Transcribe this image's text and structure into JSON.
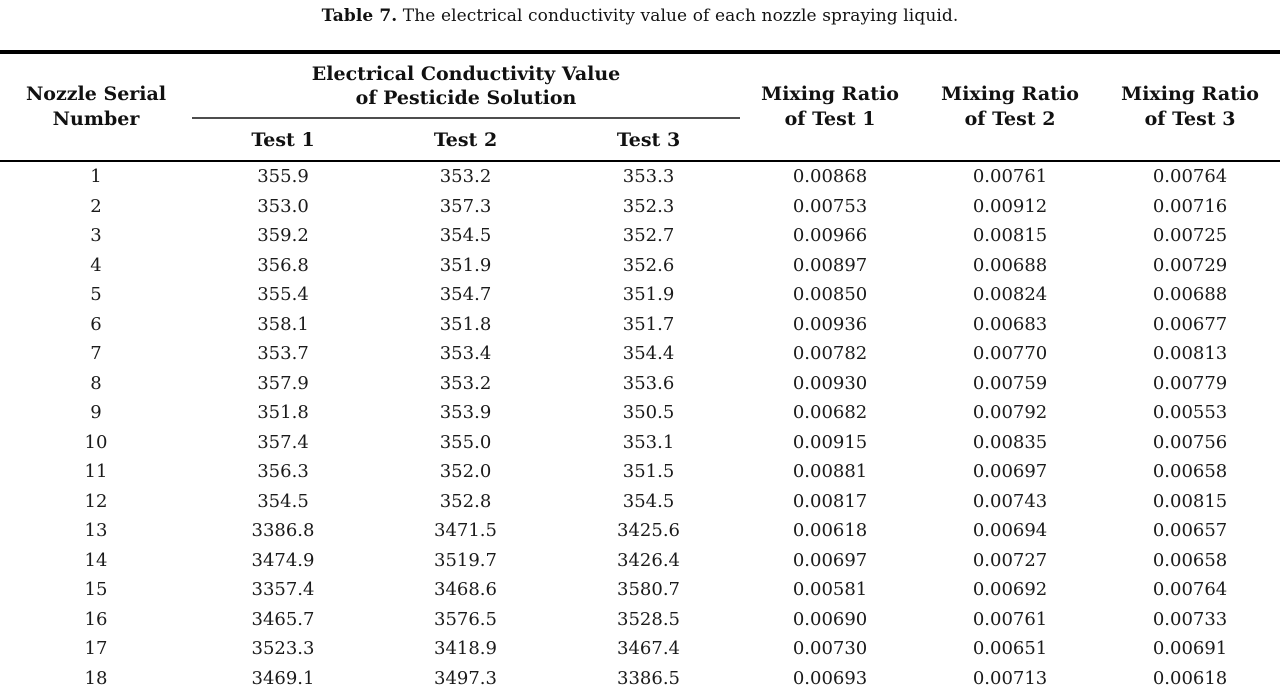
{
  "page": {
    "background": "#ffffff",
    "text_color": "#111111",
    "rule_color": "#000000",
    "group_rule_color": "#4d4d4d"
  },
  "caption": {
    "label": "Table 7.",
    "text": "The electrical conductivity value of each nozzle spraying liquid."
  },
  "table": {
    "headers": {
      "nozzle_serial": "Nozzle Serial\nNumber",
      "conductivity_group": "Electrical Conductivity Value\nof Pesticide Solution",
      "tests": [
        "Test 1",
        "Test 2",
        "Test 3"
      ],
      "mixing_ratios": [
        "Mixing Ratio\nof Test 1",
        "Mixing Ratio\nof Test 2",
        "Mixing Ratio\nof Test 3"
      ]
    },
    "rows": [
      [
        "1",
        "355.9",
        "353.2",
        "353.3",
        "0.00868",
        "0.00761",
        "0.00764"
      ],
      [
        "2",
        "353.0",
        "357.3",
        "352.3",
        "0.00753",
        "0.00912",
        "0.00716"
      ],
      [
        "3",
        "359.2",
        "354.5",
        "352.7",
        "0.00966",
        "0.00815",
        "0.00725"
      ],
      [
        "4",
        "356.8",
        "351.9",
        "352.6",
        "0.00897",
        "0.00688",
        "0.00729"
      ],
      [
        "5",
        "355.4",
        "354.7",
        "351.9",
        "0.00850",
        "0.00824",
        "0.00688"
      ],
      [
        "6",
        "358.1",
        "351.8",
        "351.7",
        "0.00936",
        "0.00683",
        "0.00677"
      ],
      [
        "7",
        "353.7",
        "353.4",
        "354.4",
        "0.00782",
        "0.00770",
        "0.00813"
      ],
      [
        "8",
        "357.9",
        "353.2",
        "353.6",
        "0.00930",
        "0.00759",
        "0.00779"
      ],
      [
        "9",
        "351.8",
        "353.9",
        "350.5",
        "0.00682",
        "0.00792",
        "0.00553"
      ],
      [
        "10",
        "357.4",
        "355.0",
        "353.1",
        "0.00915",
        "0.00835",
        "0.00756"
      ],
      [
        "11",
        "356.3",
        "352.0",
        "351.5",
        "0.00881",
        "0.00697",
        "0.00658"
      ],
      [
        "12",
        "354.5",
        "352.8",
        "354.5",
        "0.00817",
        "0.00743",
        "0.00815"
      ],
      [
        "13",
        "3386.8",
        "3471.5",
        "3425.6",
        "0.00618",
        "0.00694",
        "0.00657"
      ],
      [
        "14",
        "3474.9",
        "3519.7",
        "3426.4",
        "0.00697",
        "0.00727",
        "0.00658"
      ],
      [
        "15",
        "3357.4",
        "3468.6",
        "3580.7",
        "0.00581",
        "0.00692",
        "0.00764"
      ],
      [
        "16",
        "3465.7",
        "3576.5",
        "3528.5",
        "0.00690",
        "0.00761",
        "0.00733"
      ],
      [
        "17",
        "3523.3",
        "3418.9",
        "3467.4",
        "0.00730",
        "0.00651",
        "0.00691"
      ],
      [
        "18",
        "3469.1",
        "3497.3",
        "3386.5",
        "0.00693",
        "0.00713",
        "0.00618"
      ]
    ]
  }
}
